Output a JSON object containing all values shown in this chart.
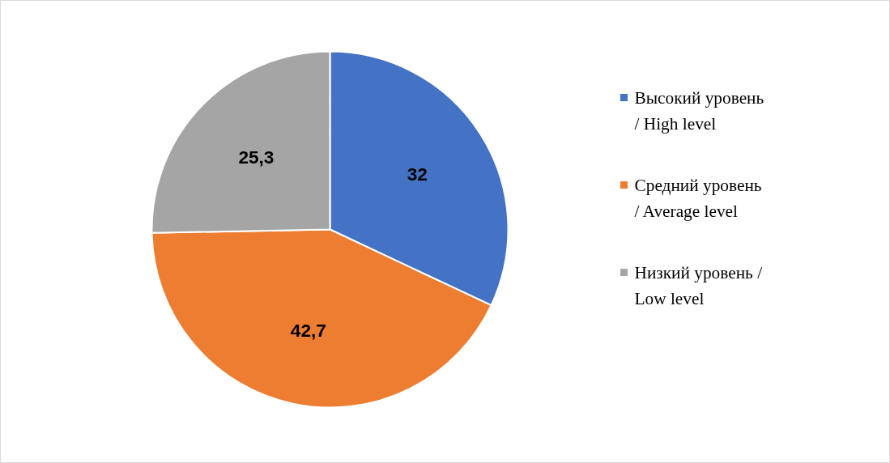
{
  "chart_data": {
    "type": "pie",
    "categories": [
      "Высокий уровень\n/ High level",
      "Средний уровень\n/ Average level",
      "Низкий уровень /\nLow level"
    ],
    "values": [
      32,
      42.7,
      25.3
    ],
    "colors": [
      "#4472c4",
      "#ed7d31",
      "#a5a5a5"
    ],
    "value_labels": [
      "32",
      "42,7",
      "25,3"
    ],
    "legend": "right"
  }
}
